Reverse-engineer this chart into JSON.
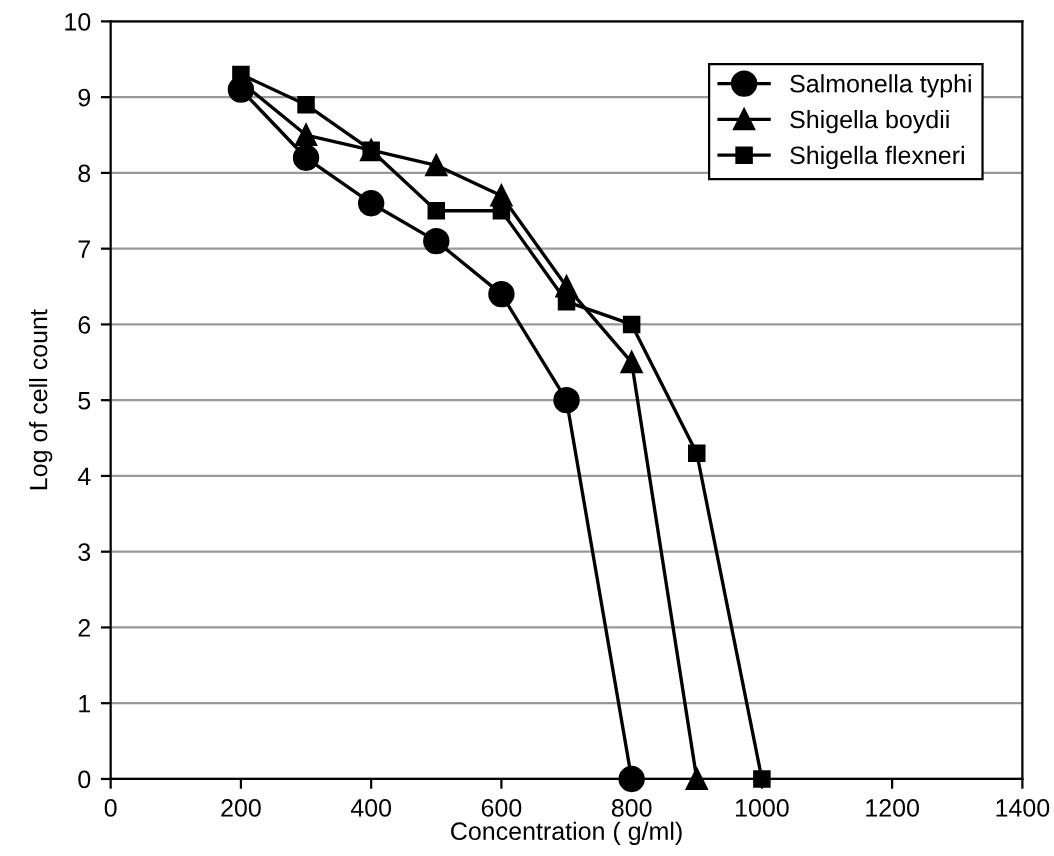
{
  "chart_data": {
    "type": "line",
    "xlabel": "Concentration ( g/ml)",
    "ylabel": "Log of cell count",
    "x": [
      200,
      300,
      400,
      500,
      600,
      700,
      800,
      900,
      1000
    ],
    "series": [
      {
        "name": "Salmonella typhi",
        "color": "#000000",
        "marker": "circle",
        "values": [
          9.1,
          8.2,
          7.6,
          7.1,
          6.4,
          5.0,
          0,
          null,
          null
        ]
      },
      {
        "name": "Shigella boydii",
        "color": "#000000",
        "marker": "triangle",
        "values": [
          9.2,
          8.5,
          8.3,
          8.1,
          7.7,
          6.5,
          5.5,
          0,
          null
        ]
      },
      {
        "name": "Shigella flexneri",
        "color": "#000000",
        "marker": "square",
        "values": [
          9.3,
          8.9,
          8.3,
          7.5,
          7.5,
          6.3,
          6.0,
          4.3,
          0
        ]
      }
    ],
    "xlim": [
      0,
      1400
    ],
    "xticks": [
      0,
      200,
      400,
      600,
      800,
      1000,
      1200,
      1400
    ],
    "ylim": [
      0,
      10
    ],
    "yticks": [
      0,
      1,
      2,
      3,
      4,
      5,
      6,
      7,
      8,
      9,
      10
    ],
    "grid": "y",
    "legend": "top right",
    "line_style": "solid"
  }
}
